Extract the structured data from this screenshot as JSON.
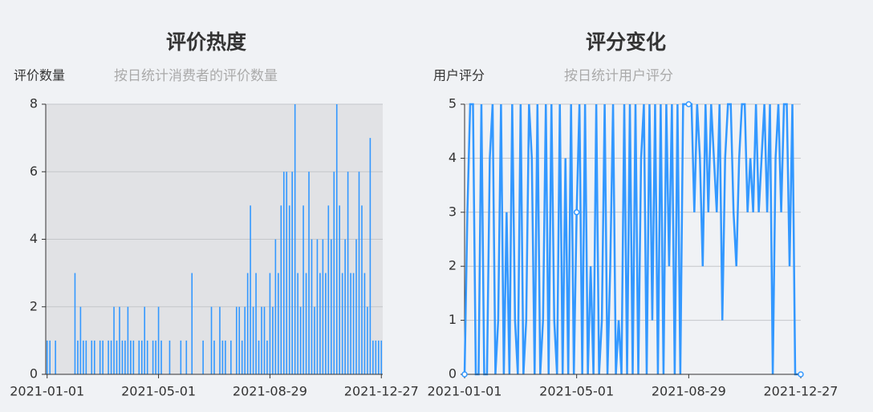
{
  "chart_data": [
    {
      "type": "bar",
      "title": "评价热度",
      "subtitle": "按日统计消费者的评价数量",
      "y_label": "评价数量",
      "color": "#3398ff",
      "grid": true,
      "categories": [
        "2021-01-01",
        null,
        null,
        null,
        null,
        null,
        null,
        null,
        null,
        null,
        null,
        null,
        null,
        null,
        null,
        null,
        null,
        null,
        null,
        null,
        null,
        null,
        null,
        null,
        null,
        null,
        null,
        null,
        null,
        null,
        null,
        null,
        null,
        null,
        null,
        null,
        null,
        null,
        null,
        null,
        "2021-05-01",
        null,
        null,
        null,
        null,
        null,
        null,
        null,
        null,
        null,
        null,
        null,
        null,
        null,
        null,
        null,
        null,
        null,
        null,
        null,
        null,
        null,
        null,
        null,
        null,
        null,
        null,
        null,
        null,
        null,
        null,
        null,
        null,
        null,
        null,
        null,
        null,
        null,
        null,
        null,
        "2021-08-29",
        null,
        null,
        null,
        null,
        null,
        null,
        null,
        null,
        null,
        null,
        null,
        null,
        null,
        null,
        null,
        null,
        null,
        null,
        null,
        null,
        null,
        null,
        null,
        null,
        null,
        null,
        null,
        null,
        null,
        null,
        null,
        null,
        null,
        null,
        null,
        null,
        null,
        null,
        null,
        "2021-12-27"
      ],
      "values": [
        1,
        1,
        0,
        1,
        0,
        0,
        0,
        0,
        0,
        0,
        3,
        1,
        2,
        1,
        1,
        0,
        1,
        1,
        0,
        1,
        1,
        0,
        1,
        1,
        2,
        1,
        2,
        1,
        1,
        2,
        1,
        1,
        0,
        1,
        1,
        2,
        1,
        0,
        1,
        1,
        2,
        1,
        0,
        0,
        1,
        0,
        0,
        0,
        1,
        0,
        1,
        0,
        3,
        0,
        0,
        0,
        1,
        0,
        0,
        2,
        1,
        0,
        2,
        1,
        1,
        0,
        1,
        0,
        2,
        2,
        1,
        2,
        3,
        5,
        2,
        3,
        1,
        2,
        2,
        1,
        3,
        2,
        4,
        3,
        5,
        6,
        6,
        5,
        6,
        8,
        3,
        2,
        5,
        3,
        6,
        4,
        2,
        4,
        3,
        4,
        3,
        5,
        4,
        6,
        8,
        5,
        3,
        4,
        6,
        3,
        3,
        4,
        6,
        5,
        3,
        2,
        7,
        1,
        1,
        1,
        1
      ],
      "ylim": [
        0,
        8
      ],
      "yticks": [
        0,
        2,
        4,
        6,
        8
      ]
    },
    {
      "type": "line",
      "title": "评分变化",
      "subtitle": "按日统计用户评分",
      "y_label": "用户评分",
      "color": "#3398ff",
      "grid": true,
      "categories": [
        "2021-01-01",
        null,
        null,
        null,
        null,
        null,
        null,
        null,
        null,
        null,
        null,
        null,
        null,
        null,
        null,
        null,
        null,
        null,
        null,
        null,
        null,
        null,
        null,
        null,
        null,
        null,
        null,
        null,
        null,
        null,
        null,
        null,
        null,
        null,
        null,
        null,
        null,
        null,
        null,
        null,
        "2021-05-01",
        null,
        null,
        null,
        null,
        null,
        null,
        null,
        null,
        null,
        null,
        null,
        null,
        null,
        null,
        null,
        null,
        null,
        null,
        null,
        null,
        null,
        null,
        null,
        null,
        null,
        null,
        null,
        null,
        null,
        null,
        null,
        null,
        null,
        null,
        null,
        null,
        null,
        null,
        null,
        "2021-08-29",
        null,
        null,
        null,
        null,
        null,
        null,
        null,
        null,
        null,
        null,
        null,
        null,
        null,
        null,
        null,
        null,
        null,
        null,
        null,
        null,
        null,
        null,
        null,
        null,
        null,
        null,
        null,
        null,
        null,
        null,
        null,
        null,
        null,
        null,
        null,
        null,
        null,
        null,
        null,
        "2021-12-27"
      ],
      "values": [
        0,
        3,
        5,
        5,
        0,
        0,
        5,
        0,
        0,
        4,
        5,
        0,
        1,
        5,
        0,
        3,
        0,
        5,
        1,
        0,
        5,
        0,
        1,
        5,
        4,
        0,
        5,
        0,
        1,
        5,
        0,
        5,
        1,
        0,
        5,
        0,
        4,
        0,
        5,
        0,
        3,
        5,
        0,
        5,
        0,
        2,
        0,
        5,
        0,
        1,
        5,
        0,
        2,
        5,
        0,
        1,
        0,
        5,
        0,
        5,
        0,
        5,
        0,
        4,
        5,
        0,
        5,
        1,
        5,
        0,
        5,
        0,
        5,
        2,
        5,
        0,
        5,
        0,
        5,
        5,
        5,
        5,
        3,
        5,
        4,
        2,
        5,
        3,
        5,
        4,
        3,
        5,
        1,
        4,
        5,
        5,
        3,
        2,
        4,
        5,
        5,
        3,
        4,
        3,
        5,
        3,
        4,
        5,
        3,
        5,
        0,
        4,
        5,
        3,
        5,
        5,
        2,
        5,
        0,
        0,
        0
      ],
      "ylim": [
        0,
        5
      ],
      "yticks": [
        0,
        1,
        2,
        3,
        4,
        5
      ]
    }
  ]
}
